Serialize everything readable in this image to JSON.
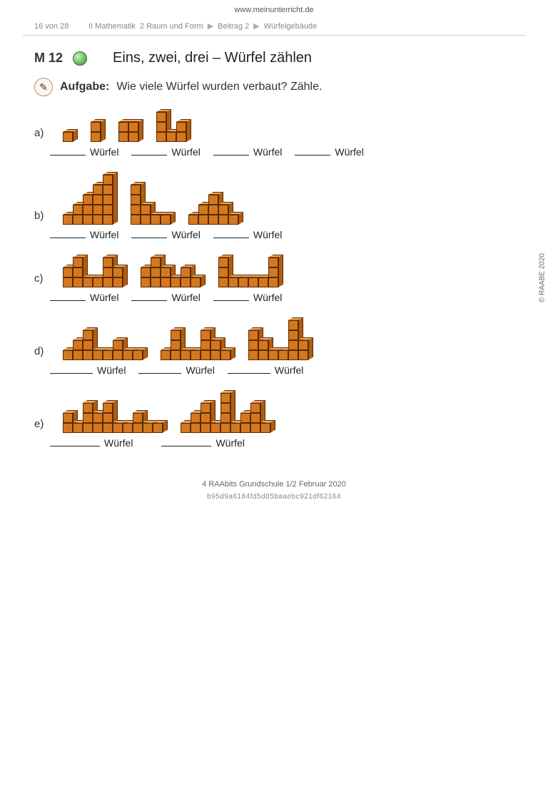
{
  "meta": {
    "url": "www.meinunterricht.de",
    "page_indicator": "16 von 28",
    "breadcrumb": [
      "II Mathematik",
      "2 Raum und Form",
      "Beitrag 2",
      "Würfelgebäude"
    ],
    "footer": "4 RAAbits Grundschule 1/2 Februar 2020",
    "hash": "b95d9a6184fd5d85baaebc921df62164",
    "copyright": "© RAABE 2020"
  },
  "worksheet": {
    "module_label": "M 12",
    "title": "Eins, zwei, drei – Würfel zählen",
    "task_label": "Aufgabe:",
    "task_text": "Wie viele Würfel wurden verbaut? Zähle.",
    "answer_word": "Würfel",
    "cube_style": {
      "unit": 14,
      "top_color": "#f0a860",
      "left_color": "#d47820",
      "right_color": "#b05c10",
      "stroke": "#5a2a00"
    },
    "rows": [
      {
        "letter": "a)",
        "blank_width": 50,
        "items": [
          {
            "columns": [
              1
            ]
          },
          {
            "columns": [
              2
            ]
          },
          {
            "columns": [
              2,
              2
            ]
          },
          {
            "columns": [
              3,
              1,
              2
            ]
          }
        ]
      },
      {
        "letter": "b)",
        "blank_width": 50,
        "items": [
          {
            "columns": [
              1,
              2,
              3,
              4,
              5
            ]
          },
          {
            "columns": [
              4,
              2,
              1,
              1
            ]
          },
          {
            "columns": [
              1,
              2,
              3,
              2,
              1
            ]
          }
        ]
      },
      {
        "letter": "c)",
        "blank_width": 50,
        "items": [
          {
            "columns": [
              2,
              3,
              1,
              1,
              3,
              2
            ]
          },
          {
            "columns": [
              2,
              3,
              2,
              1,
              2,
              1
            ]
          },
          {
            "columns": [
              3,
              1,
              1,
              1,
              1,
              3
            ]
          }
        ]
      },
      {
        "letter": "d)",
        "blank_width": 60,
        "items": [
          {
            "columns": [
              1,
              2,
              3,
              1,
              1,
              2,
              1,
              1
            ]
          },
          {
            "columns": [
              1,
              3,
              1,
              1,
              3,
              2,
              1
            ]
          },
          {
            "columns": [
              3,
              2,
              1,
              1,
              4,
              2
            ]
          }
        ]
      },
      {
        "letter": "e)",
        "blank_width": 70,
        "items": [
          {
            "columns": [
              2,
              1,
              3,
              2,
              3,
              1,
              1,
              2,
              1,
              1
            ]
          },
          {
            "columns": [
              1,
              2,
              3,
              1,
              4,
              1,
              2,
              3,
              1
            ]
          }
        ]
      }
    ]
  }
}
